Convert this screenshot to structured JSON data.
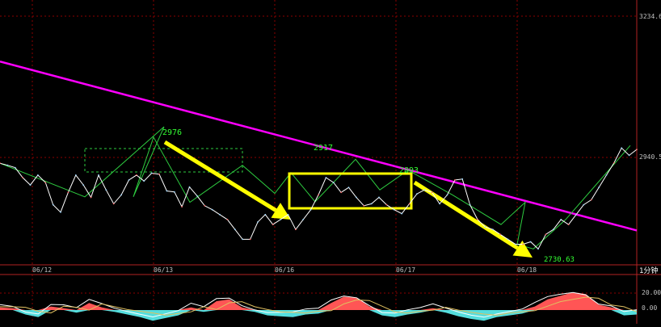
{
  "interval_label": "1分钟",
  "colors": {
    "background": "#000000",
    "grid": "#8b0000",
    "frame": "#b22222",
    "price_line": "#ffffff",
    "trend_line": "#ff00ff",
    "arrow": "#ffff00",
    "box": "#ffff00",
    "zigzag": "#2ecc40",
    "annotation_text": "#33ff33",
    "axis_text": "#c0c0c0",
    "hist_pos": "#ff5555",
    "hist_neg": "#55dddd",
    "osc_line_a": "#ffffff",
    "osc_line_b": "#e0c060"
  },
  "chart_data": [
    {
      "type": "line",
      "panel": "price",
      "y_ticks": [
        "3234.6",
        "2940.5"
      ],
      "x_ticks": [
        "06/12",
        "06/13",
        "06/16",
        "06/17",
        "06/18"
      ],
      "ylim": [
        2700,
        3234.6
      ],
      "grid": true,
      "annotations": [
        {
          "text": "2976",
          "x": "06/13",
          "y": 2976
        },
        {
          "text": "2917",
          "x": "06/16",
          "y": 2917
        },
        {
          "text": "2893",
          "x": "06/17",
          "y": 2893
        },
        {
          "text": "2730.63",
          "x": "06/18",
          "y": 2730.63
        }
      ],
      "series": [
        {
          "values": [
            2904,
            2900,
            2895,
            2875,
            2860,
            2880,
            2865,
            2820,
            2805,
            2845,
            2880,
            2860,
            2835,
            2880,
            2850,
            2822,
            2840,
            2870,
            2880,
            2868,
            2884,
            2882,
            2848,
            2846,
            2816,
            2856,
            2838,
            2818,
            2810,
            2800,
            2790,
            2770,
            2750,
            2750,
            2785,
            2800,
            2780,
            2790,
            2800,
            2770,
            2790,
            2810,
            2840,
            2875,
            2865,
            2845,
            2855,
            2835,
            2818,
            2822,
            2835,
            2820,
            2810,
            2802,
            2822,
            2842,
            2850,
            2845,
            2822,
            2840,
            2870,
            2872,
            2820,
            2790,
            2775,
            2770,
            2760,
            2750,
            2740,
            2740,
            2745,
            2730.63,
            2760,
            2770,
            2790,
            2780,
            2800,
            2820,
            2830,
            2855,
            2880,
            2905,
            2935,
            2920,
            2932
          ]
        }
      ],
      "trend_line": {
        "y_start": 3110,
        "y_end": 2768
      },
      "zigzag": [
        2904,
        2836,
        2978,
        2836,
        2957,
        2825,
        2900,
        2843,
        2885,
        2826,
        2912,
        2850,
        2890,
        2840,
        2780,
        2825,
        2740,
        2730.63,
        2790,
        2940
      ]
    },
    {
      "type": "area",
      "panel": "oscillator",
      "y_ticks": [
        "20.00",
        "0.00"
      ],
      "ylim": [
        -30,
        30
      ],
      "series": [
        {
          "values": [
            3,
            2,
            -5,
            -8,
            4,
            2,
            -3,
            8,
            3,
            -2,
            -5,
            -8,
            -12,
            -9,
            -6,
            3,
            -2,
            10,
            12,
            3,
            -2,
            -6,
            -7,
            -8,
            -5,
            -4,
            8,
            15,
            14,
            4,
            -6,
            -8,
            -5,
            -3,
            2,
            -3,
            -7,
            -10,
            -12,
            -8,
            -6,
            -4,
            4,
            12,
            16,
            20,
            18,
            6,
            3,
            -6,
            -5
          ]
        }
      ]
    }
  ]
}
